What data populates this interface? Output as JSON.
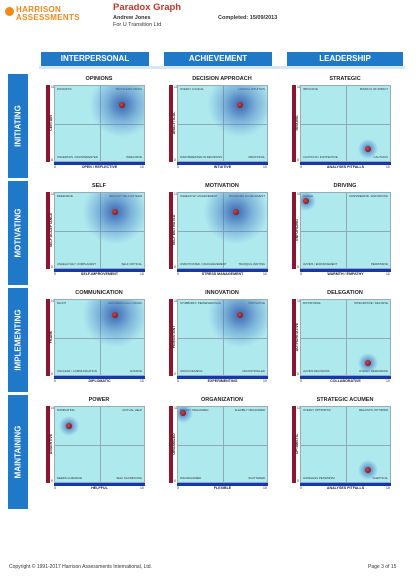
{
  "header": {
    "logo_line1": "HARRISON",
    "logo_line2": "ASSESSMENTS",
    "title": "Paradox Graph",
    "name": "Andrew Jones",
    "company": "For U Transition Ltd",
    "completed": "Completed: 15/09/2013"
  },
  "columns": [
    "INTERPERSONAL",
    "ACHIEVEMENT",
    "LEADERSHIP"
  ],
  "rows": [
    "INITIATING",
    "MOTIVATING",
    "IMPLEMENTING",
    "MAINTAINING"
  ],
  "colors": {
    "header_blue": "#1f78c8",
    "plot_bg": "#aee9ee",
    "y_bar": "#8e1530",
    "x_bar": "#1538b0",
    "brand_orange": "#f28a1b",
    "title_red": "#c0392b"
  },
  "charts": [
    {
      "title": "OPINIONS",
      "ylabel": "CERTAIN",
      "xlabel": "OPEN / REFLECTIVE",
      "tl": "DOGMATIC",
      "tr": "TRUTH EXPLORING",
      "bl": "UNCERTAIN / DISINTERESTED",
      "br": "INDECISIVE",
      "x": 7.5,
      "y": 7.5,
      "glow": true
    },
    {
      "title": "DECISION APPROACH",
      "ylabel": "ANALYTICAL",
      "xlabel": "INTUITIVE",
      "tl": "OVERLY LOGICAL",
      "tr": "LOGICAL INTUITION",
      "bl": "DISINTERESTED IN DECISIONS",
      "br": "IRRATIONAL",
      "x": 7.0,
      "y": 7.5,
      "glow": true
    },
    {
      "title": "STRATEGIC",
      "ylabel": "RISKING",
      "xlabel": "ANALYSES PITFALLS",
      "tl": "IMPULSIVE",
      "tr": "MINDFUL OF IMPACT",
      "bl": "CAUTIOUS / INATTENTIVE",
      "br": "CAUTIOUS",
      "x": 7.5,
      "y": 1.6,
      "glow": false
    },
    {
      "title": "SELF",
      "ylabel": "SELF ACCEPTANCE",
      "xlabel": "SELF-IMPROVEMENT",
      "tl": "DEFENSIVE",
      "tr": "HEALTHY SELF-ESTEEM",
      "bl": "UNHEALTHILY COMPLACENT",
      "br": "SELF CRITICAL",
      "x": 6.7,
      "y": 7.5,
      "glow": true
    },
    {
      "title": "MOTIVATION",
      "ylabel": "SELF MOTIVATED",
      "xlabel": "STRESS MANAGEMENT",
      "tl": "UNHEALTHY ACHIEVEMENT",
      "tr": "BALANCED ACHIEVEMENT",
      "bl": "UNMOTIVATED / UNACHIEVEMENT",
      "br": "TRANQUIL WAITING",
      "x": 6.5,
      "y": 7.5,
      "glow": true
    },
    {
      "title": "DRIVING",
      "ylabel": "ENFORCING",
      "xlabel": "WARMTH / EMPATHY",
      "tl": "HARSH",
      "tr": "CONSIDERATE / ENFORCING",
      "bl": "AVOIDS / ENFORCEMENT",
      "br": "PERMISSIVE",
      "x": 0.6,
      "y": 9.0,
      "glow": false
    },
    {
      "title": "COMMUNICATION",
      "ylabel": "FRANK",
      "xlabel": "DIPLOMATIC",
      "tl": "BLUNT",
      "tr": "DIPLOMATICALLY FRANK",
      "bl": "UNCLEAR / COMMUNICATION",
      "br": "EVASIVE",
      "x": 6.7,
      "y": 8.0,
      "glow": true
    },
    {
      "title": "INNOVATION",
      "ylabel": "PERSISTENT",
      "xlabel": "EXPERIMENTING",
      "tl": "STUBBORN / PERSEVERANCE",
      "tr": "INNOVATIVE",
      "bl": "UNSUCCESSFUL",
      "br": "UNCONTROLLED",
      "x": 7.0,
      "y": 8.0,
      "glow": true
    },
    {
      "title": "DELEGATION",
      "ylabel": "AUTHORITATIVE",
      "xlabel": "COLLABORATIVE",
      "tl": "DICTATORIAL",
      "tr": "INTEGRATIVE / DECISIVE",
      "bl": "AVOIDS DECISIONS",
      "br": "OVERLY DEMANDING",
      "x": 7.5,
      "y": 1.6,
      "glow": false
    },
    {
      "title": "POWER",
      "ylabel": "ASSERTIVE",
      "xlabel": "HELPFUL",
      "tl": "DOMINATING",
      "tr": "MUTUAL HELP",
      "bl": "NEEDS GUIDANCE",
      "br": "SELF SACRIFICING",
      "x": 1.6,
      "y": 7.5,
      "glow": false
    },
    {
      "title": "ORGANIZATION",
      "ylabel": "ORGANIZED",
      "xlabel": "FLEXIBLE",
      "tl": "RIGIDLY ORGANIZED",
      "tr": "FLEXIBLY ORGANIZED",
      "bl": "DISORGANIZED",
      "br": "SCATTERED",
      "x": 0.6,
      "y": 9.2,
      "glow": false
    },
    {
      "title": "STRATEGIC ACUMEN",
      "ylabel": "OPTIMISTIC",
      "xlabel": "ANALYSES PITFALLS",
      "tl": "OVERLY OPTIMISTIC",
      "tr": "REALISTIC OPTIMISM",
      "bl": "HOPELESS PESSIMISM",
      "br": "SCEPTICAL",
      "x": 7.5,
      "y": 1.6,
      "glow": false
    }
  ],
  "ticks": {
    "min": "0",
    "max": "10"
  },
  "footer": {
    "copyright": "Copyright © 1991-2017 Harrison Assessments International, Ltd.",
    "page": "Page 3 of 15"
  }
}
